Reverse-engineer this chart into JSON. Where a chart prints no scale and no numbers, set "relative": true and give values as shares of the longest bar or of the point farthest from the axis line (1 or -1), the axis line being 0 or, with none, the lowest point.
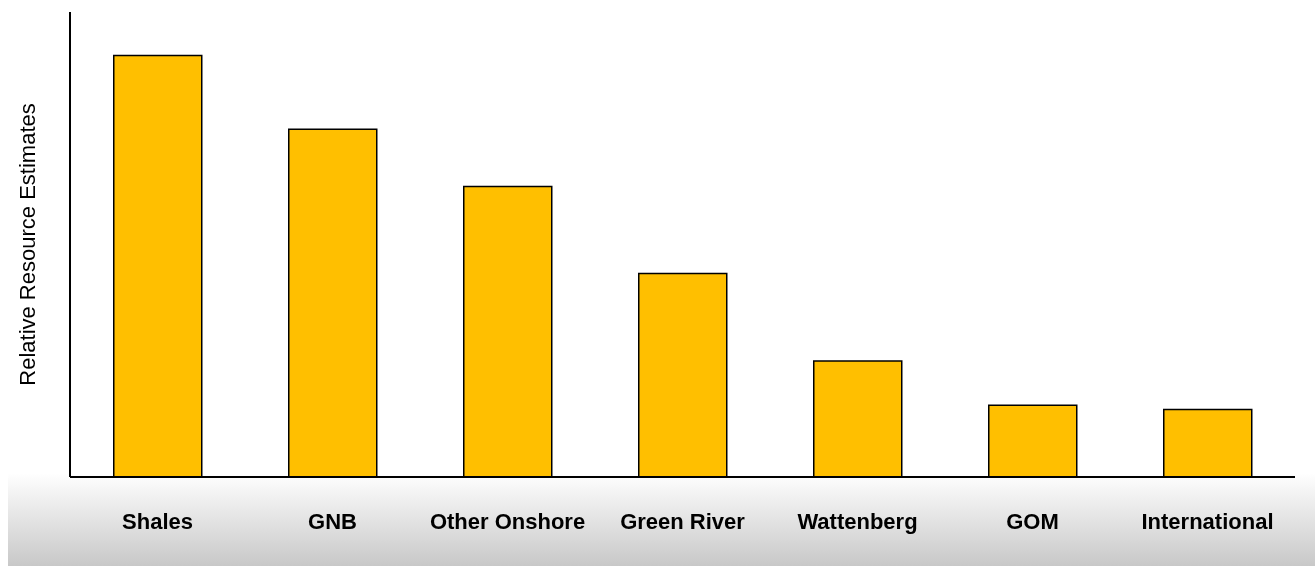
{
  "chart_data": {
    "type": "bar",
    "ylabel": "Relative Resource Estimates",
    "categories": [
      "Shales",
      "GNB",
      "Other Onshore",
      "Green River",
      "Wattenberg",
      "GOM",
      "International"
    ],
    "values": [
      1,
      0.825,
      0.689,
      0.483,
      0.275,
      0.17,
      0.16
    ],
    "color": "#ffbf00",
    "relative": true,
    "grid": false,
    "legend": false
  }
}
